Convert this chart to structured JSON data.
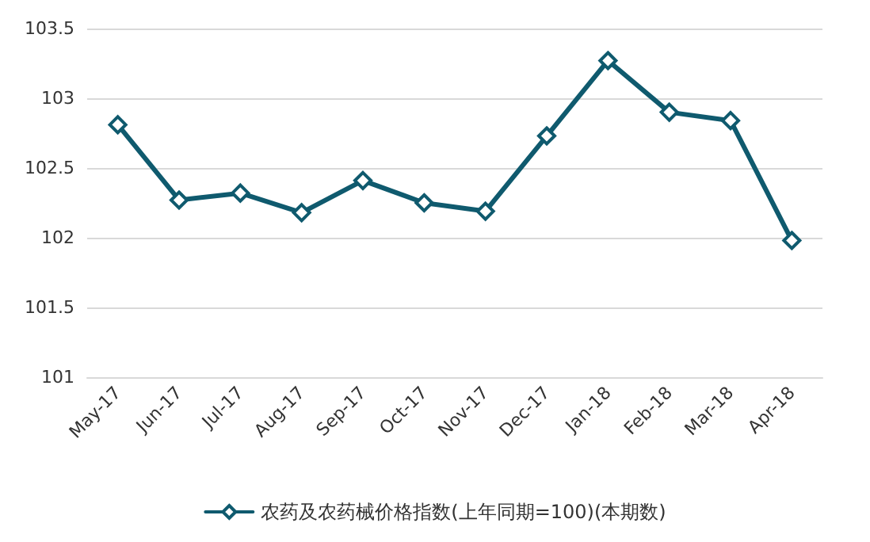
{
  "chart_data": {
    "type": "line",
    "categories": [
      "May-17",
      "Jun-17",
      "Jul-17",
      "Aug-17",
      "Sep-17",
      "Oct-17",
      "Nov-17",
      "Dec-17",
      "Jan-18",
      "Feb-18",
      "Mar-18",
      "Apr-18"
    ],
    "series": [
      {
        "name": "农药及农药械价格指数(上年同期=100)(本期数)",
        "color": "#0f5a6e",
        "values": [
          102.81,
          102.27,
          102.32,
          102.18,
          102.41,
          102.25,
          102.19,
          102.73,
          103.27,
          102.9,
          102.84,
          101.98
        ]
      }
    ],
    "ylim": [
      101,
      103.5
    ],
    "yticks": [
      101,
      101.5,
      102,
      102.5,
      103,
      103.5
    ],
    "grid": "y",
    "legend": "bottom",
    "marker": "diamond",
    "line_style": "solid"
  }
}
